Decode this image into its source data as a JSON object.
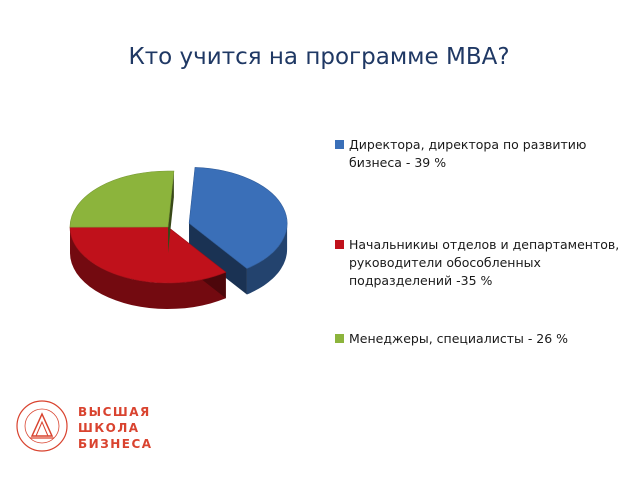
{
  "slide": {
    "title": "Кто учится на программе MBA?"
  },
  "chart_data": {
    "type": "pie",
    "title": "",
    "slices": [
      {
        "label": "Директора, директора по развитию бизнеса - 39 %",
        "value": 39,
        "color": "#3a6fb8",
        "exploded": true
      },
      {
        "label": "Начальникиы отделов и департаментов, руководители обособленных подразделений -35 %",
        "value": 35,
        "color": "#c0111b",
        "exploded": false
      },
      {
        "label": "Менеджеры, специалисты - 26 %",
        "value": 26,
        "color": "#8cb43c",
        "exploded": false
      }
    ],
    "legend_position": "right"
  },
  "legend": {
    "items": [
      {
        "label": "Директора, директора по развитию бизнеса - 39 %",
        "color": "#3a6fb8"
      },
      {
        "label": "Начальникиы отделов и департаментов, руководители обособленных подразделений -35 %",
        "color": "#c0111b"
      },
      {
        "label": "Менеджеры, специалисты - 26 %",
        "color": "#8cb43c"
      }
    ]
  },
  "logo": {
    "line1": "ВЫСШАЯ",
    "line2": "ШКОЛА",
    "line3": "БИЗНЕСА",
    "color": "#d9432f",
    "emblem_text": "ЮЖНЫЙ ФЕДЕРАЛЬНЫЙ УНИВЕРСИТЕТ"
  }
}
